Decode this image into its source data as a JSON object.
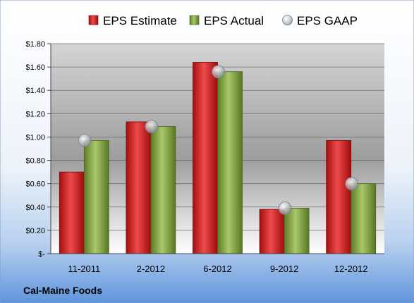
{
  "chart_data": {
    "type": "bar",
    "categories": [
      "11-2011",
      "2-2012",
      "6-2012",
      "9-2012",
      "12-2012"
    ],
    "series": [
      {
        "name": "EPS Estimate",
        "kind": "bar",
        "color": "#d42a2a",
        "values": [
          0.7,
          1.13,
          1.64,
          0.38,
          0.97
        ]
      },
      {
        "name": "EPS Actual",
        "kind": "bar",
        "color": "#8cb04a",
        "values": [
          0.97,
          1.09,
          1.56,
          0.39,
          0.6
        ]
      },
      {
        "name": "EPS GAAP",
        "kind": "marker",
        "color": "#b9bcc3",
        "values": [
          0.97,
          1.09,
          1.56,
          0.39,
          0.6
        ]
      }
    ],
    "yticks": [
      "$-",
      "$0.20",
      "$0.40",
      "$0.60",
      "$0.80",
      "$1.00",
      "$1.20",
      "$1.40",
      "$1.60",
      "$1.80"
    ],
    "ylim": [
      0,
      1.8
    ],
    "grid": true,
    "legend_position": "top"
  },
  "footer": {
    "company": "Cal-Maine Foods"
  }
}
